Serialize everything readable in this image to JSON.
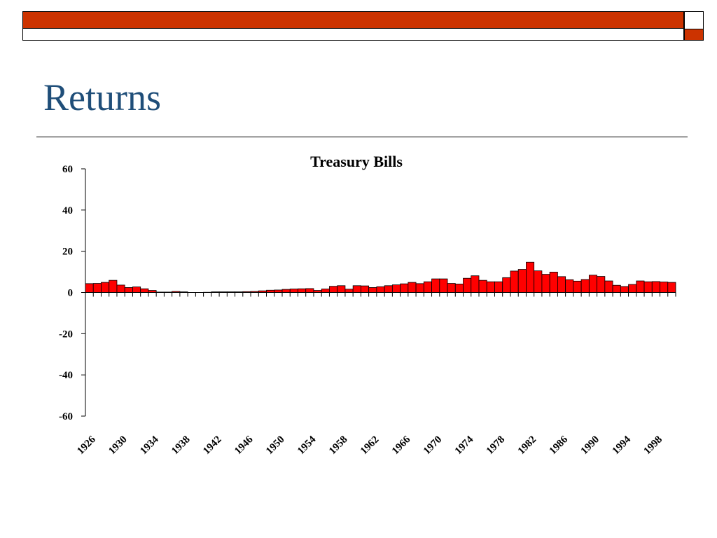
{
  "slide": {
    "title": "Returns"
  },
  "colors": {
    "accent": "#cc3300",
    "title": "#1f4e79",
    "bar": "#ff0000"
  },
  "chart_data": {
    "type": "bar",
    "title": "Treasury Bills",
    "xlabel": "",
    "ylabel": "",
    "ylim": [
      -60,
      60
    ],
    "yticks": [
      60,
      40,
      20,
      0,
      -20,
      -40,
      -60
    ],
    "x_tick_labels": [
      "1926",
      "1930",
      "1934",
      "1938",
      "1942",
      "1946",
      "1950",
      "1954",
      "1958",
      "1962",
      "1966",
      "1970",
      "1974",
      "1978",
      "1982",
      "1986",
      "1990",
      "1994",
      "1998"
    ],
    "categories": [
      "1926",
      "1927",
      "1928",
      "1929",
      "1930",
      "1931",
      "1932",
      "1933",
      "1934",
      "1935",
      "1936",
      "1937",
      "1938",
      "1939",
      "1940",
      "1941",
      "1942",
      "1943",
      "1944",
      "1945",
      "1946",
      "1947",
      "1948",
      "1949",
      "1950",
      "1951",
      "1952",
      "1953",
      "1954",
      "1955",
      "1956",
      "1957",
      "1958",
      "1959",
      "1960",
      "1961",
      "1962",
      "1963",
      "1964",
      "1965",
      "1966",
      "1967",
      "1968",
      "1969",
      "1970",
      "1971",
      "1972",
      "1973",
      "1974",
      "1975",
      "1976",
      "1977",
      "1978",
      "1979",
      "1980",
      "1981",
      "1982",
      "1983",
      "1984",
      "1985",
      "1986",
      "1987",
      "1988",
      "1989",
      "1990",
      "1991",
      "1992",
      "1993",
      "1994",
      "1995",
      "1996",
      "1997",
      "1998",
      "1999",
      "2000"
    ],
    "values": [
      4.3,
      4.4,
      4.9,
      5.9,
      3.6,
      2.4,
      2.7,
      1.8,
      1.0,
      0.2,
      0.2,
      0.5,
      0.3,
      0.0,
      0.0,
      0.1,
      0.3,
      0.3,
      0.3,
      0.3,
      0.4,
      0.5,
      0.8,
      1.1,
      1.2,
      1.5,
      1.7,
      1.8,
      1.9,
      1.0,
      1.7,
      3.0,
      3.3,
      1.6,
      3.3,
      3.2,
      2.4,
      2.8,
      3.3,
      3.7,
      4.2,
      4.9,
      4.3,
      5.2,
      6.6,
      6.6,
      4.4,
      4.1,
      6.9,
      8.1,
      5.9,
      5.2,
      5.2,
      7.2,
      10.4,
      11.2,
      14.7,
      10.5,
      8.8,
      9.9,
      7.7,
      6.2,
      5.5,
      6.3,
      8.4,
      7.8,
      5.6,
      3.5,
      2.9,
      3.9,
      5.6,
      5.2,
      5.3,
      5.1,
      4.9
    ]
  }
}
